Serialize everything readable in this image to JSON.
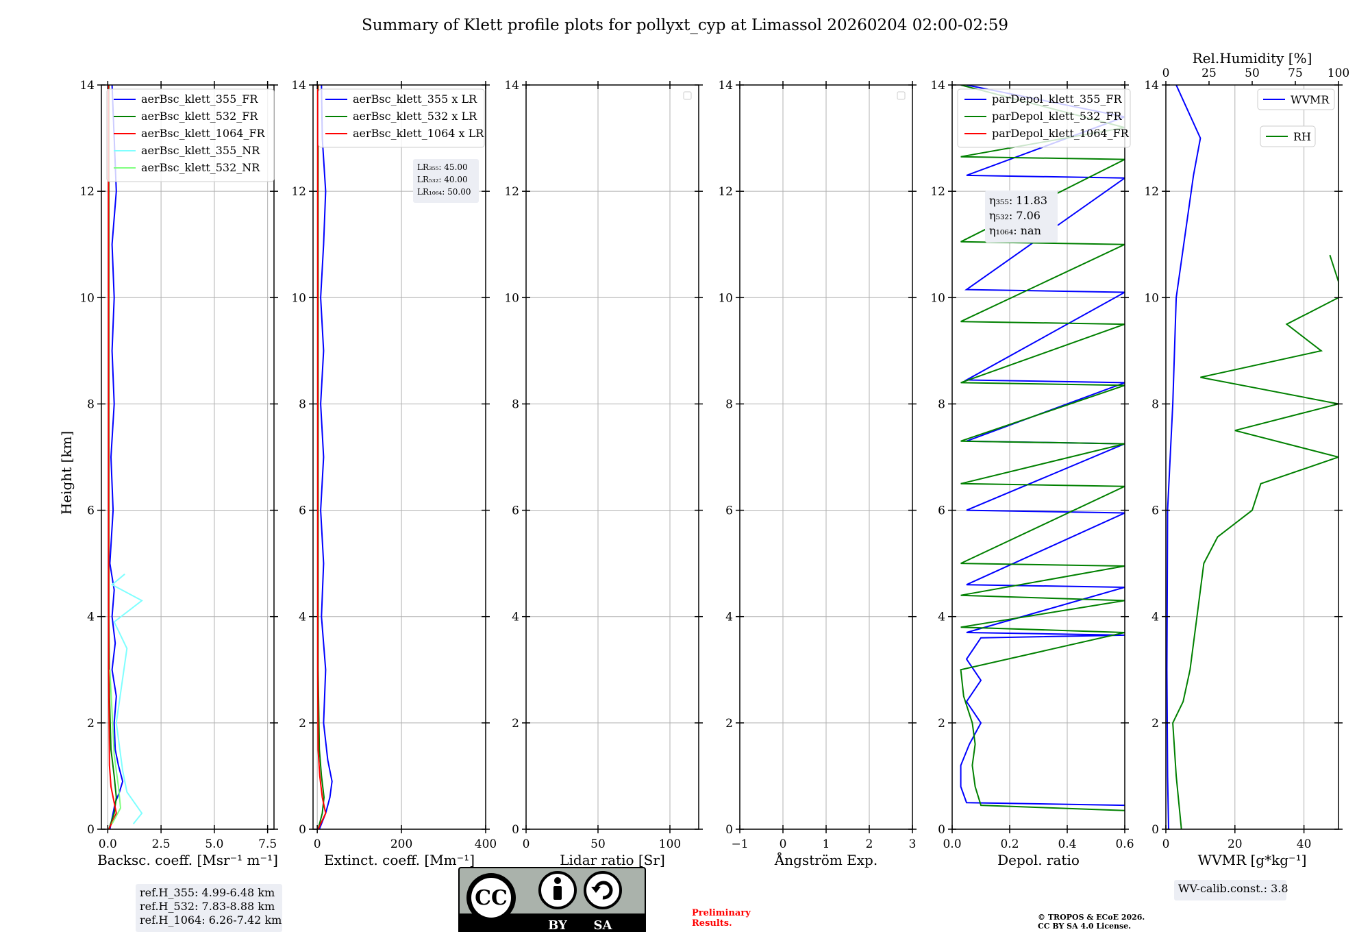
{
  "page": {
    "title": "Summary of Klett profile plots for pollyxt_cyp at Limassol 20260204 02:00-02:59",
    "ylabel": "Height [km]",
    "preliminary": [
      "Preliminary",
      "Results."
    ],
    "copyright": [
      "© TROPOS & ECoE 2026.",
      "CC BY SA 4.0 License."
    ],
    "license_badge": {
      "text": "CC",
      "by": "BY",
      "sa": "SA"
    },
    "colors": {
      "blue": "#0000ff",
      "green": "#008000",
      "red": "#ff0000",
      "cyan": "#7fffff",
      "lightgreen": "#7fff7f",
      "grid": "#b0b0b0",
      "infobox": "#eceef4"
    }
  },
  "chart_data": [
    {
      "type": "line",
      "id": "bsc",
      "xlabel": "Backsc. coeff. [Msr⁻¹ m⁻¹]",
      "xlim": [
        -0.3,
        7.8
      ],
      "xticks": [
        0.0,
        2.5,
        5.0,
        7.5
      ],
      "xtick_labels": [
        "0.0",
        "2.5",
        "5.0",
        "7.5"
      ],
      "ylim": [
        0,
        14
      ],
      "yticks": [
        0,
        2,
        4,
        6,
        8,
        10,
        12,
        14
      ],
      "legend": [
        "aerBsc_klett_355_FR",
        "aerBsc_klett_532_FR",
        "aerBsc_klett_1064_FR",
        "aerBsc_klett_355_NR",
        "aerBsc_klett_532_NR"
      ],
      "info_box": [
        "ref.H_355: 4.99-6.48 km",
        "ref.H_532: 7.83-8.88 km",
        "ref.H_1064: 6.26-7.42 km"
      ],
      "series": [
        {
          "name": "aerBsc_klett_355_FR",
          "color": "blue",
          "points": [
            [
              0.1,
              0.0
            ],
            [
              0.25,
              0.3
            ],
            [
              0.35,
              0.5
            ],
            [
              0.55,
              0.7
            ],
            [
              0.7,
              0.9
            ],
            [
              0.5,
              1.2
            ],
            [
              0.35,
              1.5
            ],
            [
              0.3,
              2.0
            ],
            [
              0.4,
              2.5
            ],
            [
              0.2,
              3.0
            ],
            [
              0.35,
              3.5
            ],
            [
              0.2,
              4.0
            ],
            [
              0.3,
              4.5
            ],
            [
              0.1,
              5.0
            ],
            [
              0.25,
              6.0
            ],
            [
              0.15,
              7.0
            ],
            [
              0.3,
              8.0
            ],
            [
              0.2,
              9.0
            ],
            [
              0.3,
              10.0
            ],
            [
              0.2,
              11.0
            ],
            [
              0.4,
              12.0
            ],
            [
              0.3,
              13.0
            ],
            [
              0.2,
              14.0
            ]
          ]
        },
        {
          "name": "aerBsc_klett_532_FR",
          "color": "green",
          "points": [
            [
              0.05,
              0.0
            ],
            [
              0.3,
              0.3
            ],
            [
              0.4,
              0.6
            ],
            [
              0.3,
              1.0
            ],
            [
              0.15,
              1.5
            ],
            [
              0.08,
              2.5
            ],
            [
              0.05,
              4.0
            ],
            [
              0.05,
              8.0
            ],
            [
              0.05,
              14.0
            ]
          ]
        },
        {
          "name": "aerBsc_klett_1064_FR",
          "color": "red",
          "points": [
            [
              0.05,
              0.0
            ],
            [
              0.4,
              0.3
            ],
            [
              0.3,
              0.5
            ],
            [
              0.15,
              0.8
            ],
            [
              0.08,
              1.2
            ],
            [
              0.04,
              3.0
            ],
            [
              0.03,
              14.0
            ]
          ]
        },
        {
          "name": "aerBsc_klett_355_NR",
          "color": "cyan",
          "points": [
            [
              1.2,
              0.1
            ],
            [
              1.6,
              0.3
            ],
            [
              0.9,
              0.7
            ],
            [
              0.7,
              1.1
            ],
            [
              0.4,
              2.0
            ],
            [
              0.9,
              3.4
            ],
            [
              0.3,
              3.9
            ],
            [
              1.6,
              4.3
            ],
            [
              0.2,
              4.6
            ],
            [
              0.8,
              4.8
            ]
          ]
        },
        {
          "name": "aerBsc_klett_532_NR",
          "color": "lightgreen",
          "points": [
            [
              0.2,
              0.1
            ],
            [
              0.6,
              0.4
            ],
            [
              0.5,
              0.8
            ],
            [
              0.3,
              1.4
            ],
            [
              0.2,
              2.2
            ],
            [
              0.1,
              3.0
            ]
          ]
        }
      ]
    },
    {
      "type": "line",
      "id": "ext",
      "xlabel": "Extinct. coeff. [Mm⁻¹]",
      "xlim": [
        -10,
        400
      ],
      "xticks": [
        0,
        200,
        400
      ],
      "xtick_labels": [
        "0",
        "200",
        "400"
      ],
      "ylim": [
        0,
        14
      ],
      "yticks": [
        0,
        2,
        4,
        6,
        8,
        10,
        12,
        14
      ],
      "legend": [
        "aerBsc_klett_355 x LR",
        "aerBsc_klett_532 x LR",
        "aerBsc_klett_1064 x LR"
      ],
      "info_box": [
        "LR₃₅₅: 45.00",
        "LR₅₃₂: 40.00",
        "LR₁₀₆₄: 50.00"
      ],
      "series": [
        {
          "name": "aerBsc_klett_355 x LR",
          "color": "blue",
          "points": [
            [
              5,
              0.0
            ],
            [
              20,
              0.3
            ],
            [
              30,
              0.6
            ],
            [
              35,
              0.9
            ],
            [
              25,
              1.3
            ],
            [
              15,
              2.0
            ],
            [
              20,
              3.0
            ],
            [
              10,
              4.0
            ],
            [
              15,
              5.0
            ],
            [
              8,
              6.0
            ],
            [
              15,
              7.0
            ],
            [
              8,
              8.0
            ],
            [
              15,
              9.0
            ],
            [
              8,
              10.0
            ],
            [
              15,
              11.0
            ],
            [
              20,
              12.0
            ],
            [
              12,
              13.0
            ],
            [
              10,
              14.0
            ]
          ]
        },
        {
          "name": "aerBsc_klett_532 x LR",
          "color": "green",
          "points": [
            [
              2,
              0.0
            ],
            [
              12,
              0.3
            ],
            [
              16,
              0.6
            ],
            [
              10,
              1.0
            ],
            [
              5,
              1.5
            ],
            [
              2,
              3.0
            ],
            [
              2,
              14.0
            ]
          ]
        },
        {
          "name": "aerBsc_klett_1064 x LR",
          "color": "red",
          "points": [
            [
              2,
              0.0
            ],
            [
              20,
              0.3
            ],
            [
              12,
              0.6
            ],
            [
              6,
              1.0
            ],
            [
              2,
              1.5
            ],
            [
              1,
              3.0
            ],
            [
              1,
              14.0
            ]
          ]
        }
      ]
    },
    {
      "type": "line",
      "id": "lr",
      "xlabel": "Lidar ratio [Sr]",
      "xlim": [
        0,
        120
      ],
      "xticks": [
        0,
        50,
        100
      ],
      "xtick_labels": [
        "0",
        "50",
        "100"
      ],
      "ylim": [
        0,
        14
      ],
      "yticks": [
        0,
        2,
        4,
        6,
        8,
        10,
        12,
        14
      ],
      "series": []
    },
    {
      "type": "line",
      "id": "ae",
      "xlabel": "Ångström Exp.",
      "xlim": [
        -1,
        3
      ],
      "xticks": [
        -1,
        0,
        1,
        2,
        3
      ],
      "xtick_labels": [
        "−1",
        "0",
        "1",
        "2",
        "3"
      ],
      "ylim": [
        0,
        14
      ],
      "yticks": [
        0,
        2,
        4,
        6,
        8,
        10,
        12,
        14
      ],
      "series": []
    },
    {
      "type": "line",
      "id": "depol",
      "xlabel": "Depol. ratio",
      "xlim": [
        0,
        0.6
      ],
      "xticks": [
        0.0,
        0.2,
        0.4,
        0.6
      ],
      "xtick_labels": [
        "0.0",
        "0.2",
        "0.4",
        "0.6"
      ],
      "ylim": [
        0,
        14
      ],
      "yticks": [
        0,
        2,
        4,
        6,
        8,
        10,
        12,
        14
      ],
      "legend": [
        "parDepol_klett_355_FR",
        "parDepol_klett_532_FR",
        "parDepol_klett_1064_FR"
      ],
      "info_box": [
        "η₃₅₅: 11.83",
        "η₅₃₂: 7.06",
        "η₁₀₆₄: nan"
      ],
      "series": [
        {
          "name": "parDepol_klett_355_FR",
          "color": "blue",
          "points": [
            [
              0.6,
              0.45
            ],
            [
              0.05,
              0.5
            ],
            [
              0.03,
              0.8
            ],
            [
              0.03,
              1.2
            ],
            [
              0.06,
              1.6
            ],
            [
              0.1,
              2.0
            ],
            [
              0.05,
              2.4
            ],
            [
              0.1,
              2.8
            ],
            [
              0.05,
              3.2
            ],
            [
              0.1,
              3.6
            ],
            [
              0.6,
              3.65
            ],
            [
              0.05,
              3.7
            ],
            [
              0.6,
              4.55
            ],
            [
              0.05,
              4.6
            ],
            [
              0.6,
              5.95
            ],
            [
              0.05,
              6.0
            ],
            [
              0.6,
              7.25
            ],
            [
              0.05,
              7.3
            ],
            [
              0.6,
              8.4
            ],
            [
              0.05,
              8.45
            ],
            [
              0.6,
              10.1
            ],
            [
              0.05,
              10.15
            ],
            [
              0.6,
              12.25
            ],
            [
              0.05,
              12.3
            ],
            [
              0.6,
              13.4
            ],
            [
              0.05,
              14.0
            ]
          ]
        },
        {
          "name": "parDepol_klett_532_FR",
          "color": "green",
          "points": [
            [
              0.6,
              0.35
            ],
            [
              0.1,
              0.45
            ],
            [
              0.08,
              0.8
            ],
            [
              0.07,
              1.2
            ],
            [
              0.08,
              1.6
            ],
            [
              0.07,
              2.0
            ],
            [
              0.04,
              2.5
            ],
            [
              0.03,
              3.0
            ],
            [
              0.6,
              3.7
            ],
            [
              0.03,
              3.8
            ],
            [
              0.6,
              4.3
            ],
            [
              0.03,
              4.4
            ],
            [
              0.6,
              4.95
            ],
            [
              0.03,
              5.0
            ],
            [
              0.6,
              6.45
            ],
            [
              0.03,
              6.5
            ],
            [
              0.6,
              7.25
            ],
            [
              0.03,
              7.3
            ],
            [
              0.6,
              8.35
            ],
            [
              0.03,
              8.4
            ],
            [
              0.6,
              9.5
            ],
            [
              0.03,
              9.55
            ],
            [
              0.6,
              11.0
            ],
            [
              0.03,
              11.05
            ],
            [
              0.6,
              12.6
            ],
            [
              0.03,
              12.65
            ],
            [
              0.6,
              13.2
            ],
            [
              0.03,
              14.0
            ]
          ]
        },
        {
          "name": "parDepol_klett_1064_FR",
          "color": "red",
          "points": []
        }
      ]
    },
    {
      "type": "line",
      "id": "wv",
      "xlabel": "WVMR [g*kg⁻¹]",
      "xlim": [
        0,
        50
      ],
      "xticks": [
        0,
        20,
        40
      ],
      "xtick_labels": [
        "0",
        "20",
        "40"
      ],
      "ylim": [
        0,
        14
      ],
      "yticks": [
        0,
        2,
        4,
        6,
        8,
        10,
        12,
        14
      ],
      "x2label": "Rel.Humidity [%]",
      "x2lim": [
        0,
        100
      ],
      "x2ticks": [
        0,
        25,
        50,
        75,
        100
      ],
      "x2tick_labels": [
        "0",
        "25",
        "50",
        "75",
        "100"
      ],
      "legend": [
        "WVMR",
        "RH"
      ],
      "info_box": [
        "WV-calib.const.: 3.8"
      ],
      "series": [
        {
          "name": "WVMR",
          "color": "blue",
          "axis": "x",
          "points": [
            [
              0.8,
              0.0
            ],
            [
              0.5,
              1.0
            ],
            [
              0.3,
              3.0
            ],
            [
              0.5,
              6.0
            ],
            [
              2.0,
              8.0
            ],
            [
              3.0,
              10.0
            ],
            [
              8.0,
              12.3
            ],
            [
              10.0,
              13.0
            ],
            [
              3.0,
              14.0
            ]
          ]
        },
        {
          "name": "RH",
          "color": "green",
          "axis": "x2",
          "points": [
            [
              9,
              0.0
            ],
            [
              6,
              1.0
            ],
            [
              4,
              2.0
            ],
            [
              10,
              2.4
            ],
            [
              14,
              3.0
            ],
            [
              18,
              4.0
            ],
            [
              22,
              5.0
            ],
            [
              30,
              5.5
            ],
            [
              50,
              6.0
            ],
            [
              55,
              6.5
            ],
            [
              100,
              7.0
            ],
            [
              40,
              7.5
            ],
            [
              100,
              8.0
            ],
            [
              20,
              8.5
            ],
            [
              90,
              9.0
            ],
            [
              70,
              9.5
            ],
            [
              100,
              10.0
            ],
            [
              100,
              10.3
            ],
            [
              95,
              10.8
            ]
          ]
        }
      ]
    }
  ]
}
